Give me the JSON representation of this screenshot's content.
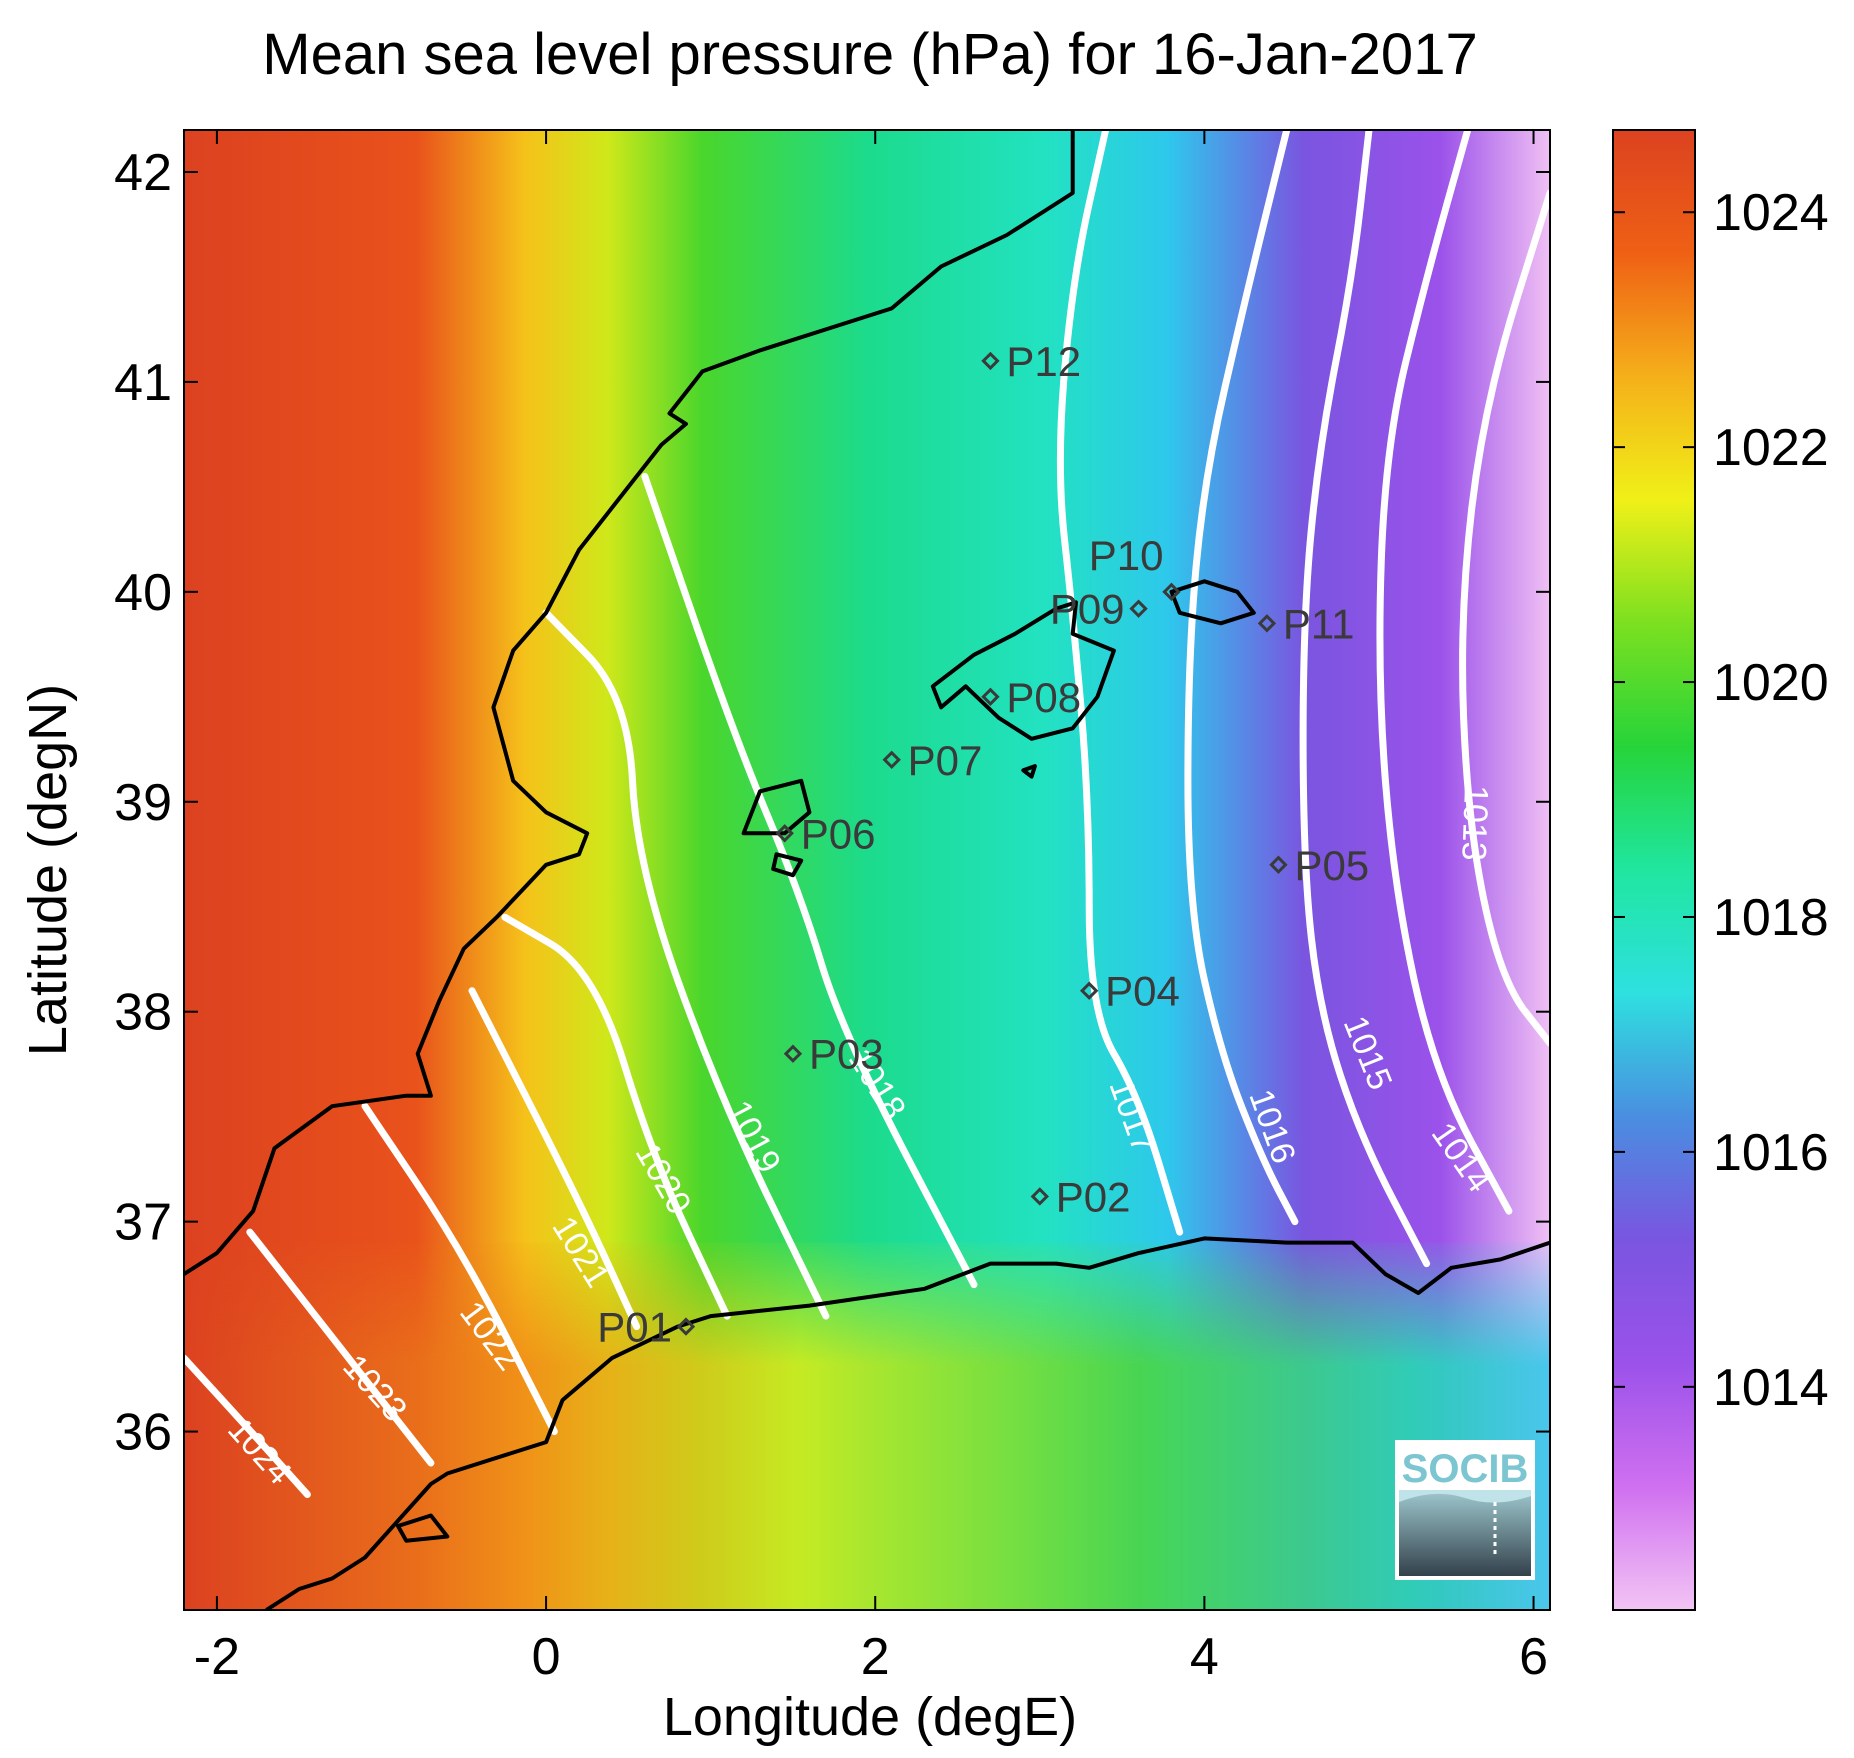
{
  "title": "Mean sea level pressure (hPa) for 16-Jan-2017",
  "xlabel": "Longitude (degE)",
  "ylabel": "Latitude (degN)",
  "xlim": [
    -2.2,
    6.1
  ],
  "ylim": [
    35.15,
    42.2
  ],
  "xticks": [
    -2,
    0,
    2,
    4,
    6
  ],
  "yticks": [
    36,
    37,
    38,
    39,
    40,
    41,
    42
  ],
  "colorbar": {
    "range": [
      1012.1,
      1024.7
    ],
    "ticks": [
      1014,
      1016,
      1018,
      1020,
      1022,
      1024
    ],
    "colors": [
      "#f2c4f4",
      "#d070f0",
      "#9b52ea",
      "#7a55e0",
      "#4a8ee0",
      "#2ee0e0",
      "#20e6a0",
      "#26d43a",
      "#7ce020",
      "#f0f018",
      "#f5b01a",
      "#ef6015",
      "#dc4220"
    ]
  },
  "contours": [
    {
      "level": "1024",
      "label": "1024",
      "points": [
        [
          -2.2,
          36.35
        ],
        [
          -1.85,
          36.05
        ],
        [
          -1.45,
          35.7
        ]
      ],
      "label_at": [
        -1.75,
        35.9
      ],
      "angle": 48
    },
    {
      "level": "1023",
      "label": "1023",
      "points": [
        [
          -1.8,
          36.95
        ],
        [
          -1.3,
          36.45
        ],
        [
          -0.7,
          35.85
        ]
      ],
      "label_at": [
        -1.05,
        36.2
      ],
      "angle": 48
    },
    {
      "level": "1022",
      "label": "1022",
      "points": [
        [
          -1.1,
          37.55
        ],
        [
          -0.5,
          36.85
        ],
        [
          0.05,
          36.0
        ]
      ],
      "label_at": [
        -0.35,
        36.45
      ],
      "angle": 53
    },
    {
      "level": "1021",
      "label": "1021",
      "points": [
        [
          -0.45,
          38.1
        ],
        [
          0.2,
          37.1
        ],
        [
          0.55,
          36.5
        ]
      ],
      "label_at": [
        0.2,
        36.85
      ],
      "angle": 58
    },
    {
      "level": "1020",
      "label": "1020",
      "points": [
        [
          -0.25,
          38.45
        ],
        [
          0.3,
          38.2
        ],
        [
          0.65,
          37.3
        ],
        [
          1.1,
          36.55
        ]
      ],
      "label_at": [
        0.7,
        37.2
      ],
      "angle": 60
    },
    {
      "level": "1019",
      "label": "1019",
      "points": [
        [
          0.0,
          39.9
        ],
        [
          0.5,
          39.5
        ],
        [
          0.55,
          38.7
        ],
        [
          1.05,
          37.6
        ],
        [
          1.7,
          36.55
        ]
      ],
      "label_at": [
        1.25,
        37.4
      ],
      "angle": 62
    },
    {
      "level": "1018",
      "label": "1018",
      "points": [
        [
          0.6,
          40.55
        ],
        [
          1.15,
          39.3
        ],
        [
          1.55,
          38.55
        ],
        [
          1.8,
          37.9
        ],
        [
          2.6,
          36.7
        ]
      ],
      "label_at": [
        2.0,
        37.65
      ],
      "angle": 58
    },
    {
      "level": "1017",
      "label": "1017",
      "points": [
        [
          3.4,
          42.2
        ],
        [
          3.2,
          41.5
        ],
        [
          3.1,
          40.6
        ],
        [
          3.2,
          39.9
        ],
        [
          3.3,
          39.0
        ],
        [
          3.3,
          38.0
        ],
        [
          3.6,
          37.6
        ],
        [
          3.85,
          36.95
        ]
      ],
      "label_at": [
        3.55,
        37.5
      ],
      "angle": 70
    },
    {
      "level": "1016",
      "label": "1016",
      "points": [
        [
          4.5,
          42.2
        ],
        [
          4.25,
          41.4
        ],
        [
          4.0,
          40.55
        ],
        [
          3.9,
          39.7
        ],
        [
          3.9,
          38.5
        ],
        [
          4.1,
          37.8
        ],
        [
          4.35,
          37.3
        ],
        [
          4.55,
          37.0
        ]
      ],
      "label_at": [
        4.4,
        37.45
      ],
      "angle": 70
    },
    {
      "level": "1015",
      "label": "1015",
      "points": [
        [
          5.0,
          42.2
        ],
        [
          4.9,
          41.5
        ],
        [
          4.7,
          40.7
        ],
        [
          4.6,
          39.9
        ],
        [
          4.6,
          38.7
        ],
        [
          4.7,
          38.0
        ],
        [
          4.95,
          37.4
        ],
        [
          5.35,
          36.8
        ]
      ],
      "label_at": [
        4.98,
        37.8
      ],
      "angle": 68
    },
    {
      "level": "1014",
      "label": "1014",
      "points": [
        [
          5.6,
          42.2
        ],
        [
          5.35,
          41.5
        ],
        [
          5.1,
          40.7
        ],
        [
          5.05,
          39.6
        ],
        [
          5.15,
          38.6
        ],
        [
          5.4,
          37.7
        ],
        [
          5.85,
          37.05
        ]
      ],
      "label_at": [
        5.55,
        37.3
      ],
      "angle": 55
    },
    {
      "level": "1013",
      "label": "1013",
      "points": [
        [
          6.1,
          41.9
        ],
        [
          5.7,
          40.9
        ],
        [
          5.55,
          39.9
        ],
        [
          5.6,
          38.9
        ],
        [
          5.8,
          38.15
        ],
        [
          6.1,
          37.85
        ]
      ],
      "label_at": [
        5.63,
        38.9
      ],
      "angle": 92
    }
  ],
  "coastlines": [
    {
      "name": "iberian-coast",
      "points": [
        [
          -2.2,
          36.75
        ],
        [
          -2.0,
          36.85
        ],
        [
          -1.78,
          37.05
        ],
        [
          -1.65,
          37.35
        ],
        [
          -1.3,
          37.55
        ],
        [
          -0.85,
          37.6
        ],
        [
          -0.7,
          37.6
        ],
        [
          -0.78,
          37.8
        ],
        [
          -0.65,
          38.05
        ],
        [
          -0.5,
          38.3
        ],
        [
          -0.3,
          38.45
        ],
        [
          0.0,
          38.7
        ],
        [
          0.2,
          38.75
        ],
        [
          0.25,
          38.85
        ],
        [
          0.0,
          38.95
        ],
        [
          -0.2,
          39.1
        ],
        [
          -0.32,
          39.45
        ],
        [
          -0.2,
          39.72
        ],
        [
          0.0,
          39.9
        ],
        [
          0.2,
          40.2
        ],
        [
          0.4,
          40.4
        ],
        [
          0.7,
          40.7
        ],
        [
          0.85,
          40.8
        ],
        [
          0.75,
          40.85
        ],
        [
          0.85,
          40.95
        ],
        [
          0.95,
          41.05
        ],
        [
          1.3,
          41.15
        ],
        [
          1.7,
          41.25
        ],
        [
          2.1,
          41.35
        ],
        [
          2.4,
          41.55
        ],
        [
          2.8,
          41.7
        ],
        [
          3.2,
          41.9
        ],
        [
          3.2,
          42.2
        ]
      ]
    },
    {
      "name": "north-african-coast",
      "points": [
        [
          -1.7,
          35.15
        ],
        [
          -1.5,
          35.25
        ],
        [
          -1.3,
          35.3
        ],
        [
          -1.1,
          35.4
        ],
        [
          -0.7,
          35.75
        ],
        [
          -0.6,
          35.8
        ],
        [
          -0.4,
          35.85
        ],
        [
          0.0,
          35.95
        ],
        [
          0.1,
          36.15
        ],
        [
          0.4,
          36.35
        ],
        [
          0.8,
          36.5
        ],
        [
          1.0,
          36.55
        ],
        [
          1.6,
          36.6
        ],
        [
          2.3,
          36.68
        ],
        [
          2.7,
          36.8
        ],
        [
          3.1,
          36.8
        ],
        [
          3.3,
          36.78
        ],
        [
          3.6,
          36.85
        ],
        [
          4.0,
          36.92
        ],
        [
          4.5,
          36.9
        ],
        [
          4.9,
          36.9
        ],
        [
          5.1,
          36.75
        ],
        [
          5.3,
          36.66
        ],
        [
          5.5,
          36.78
        ],
        [
          5.8,
          36.82
        ],
        [
          6.1,
          36.9
        ]
      ]
    },
    {
      "name": "island-alboran",
      "closed": true,
      "points": [
        [
          -0.9,
          35.55
        ],
        [
          -0.7,
          35.6
        ],
        [
          -0.6,
          35.5
        ],
        [
          -0.85,
          35.48
        ]
      ]
    },
    {
      "name": "island-mallorca",
      "closed": true,
      "points": [
        [
          2.35,
          39.55
        ],
        [
          2.6,
          39.7
        ],
        [
          2.85,
          39.8
        ],
        [
          3.1,
          39.92
        ],
        [
          3.22,
          39.95
        ],
        [
          3.2,
          39.8
        ],
        [
          3.45,
          39.72
        ],
        [
          3.35,
          39.5
        ],
        [
          3.2,
          39.35
        ],
        [
          2.95,
          39.3
        ],
        [
          2.75,
          39.4
        ],
        [
          2.55,
          39.55
        ],
        [
          2.4,
          39.45
        ]
      ]
    },
    {
      "name": "island-menorca",
      "closed": true,
      "points": [
        [
          3.8,
          40.0
        ],
        [
          4.0,
          40.05
        ],
        [
          4.2,
          40.0
        ],
        [
          4.3,
          39.9
        ],
        [
          4.1,
          39.85
        ],
        [
          3.85,
          39.9
        ]
      ]
    },
    {
      "name": "island-ibiza",
      "closed": true,
      "points": [
        [
          1.2,
          38.85
        ],
        [
          1.3,
          39.05
        ],
        [
          1.55,
          39.1
        ],
        [
          1.6,
          38.95
        ],
        [
          1.45,
          38.85
        ],
        [
          1.35,
          38.85
        ]
      ]
    },
    {
      "name": "island-formentera",
      "closed": true,
      "points": [
        [
          1.4,
          38.75
        ],
        [
          1.55,
          38.72
        ],
        [
          1.5,
          38.65
        ],
        [
          1.38,
          38.68
        ]
      ]
    },
    {
      "name": "island-cabrera",
      "closed": true,
      "points": [
        [
          2.9,
          39.15
        ],
        [
          2.97,
          39.17
        ],
        [
          2.95,
          39.12
        ]
      ]
    }
  ],
  "stations": [
    {
      "id": "P01",
      "lon": 0.85,
      "lat": 36.5,
      "label_side": "left"
    },
    {
      "id": "P02",
      "lon": 3.0,
      "lat": 37.12,
      "label_side": "right"
    },
    {
      "id": "P03",
      "lon": 1.5,
      "lat": 37.8,
      "label_side": "right"
    },
    {
      "id": "P04",
      "lon": 3.3,
      "lat": 38.1,
      "label_side": "right"
    },
    {
      "id": "P05",
      "lon": 4.45,
      "lat": 38.7,
      "label_side": "right"
    },
    {
      "id": "P06",
      "lon": 1.45,
      "lat": 38.85,
      "label_side": "right"
    },
    {
      "id": "P07",
      "lon": 2.1,
      "lat": 39.2,
      "label_side": "right"
    },
    {
      "id": "P08",
      "lon": 2.7,
      "lat": 39.5,
      "label_side": "right"
    },
    {
      "id": "P09",
      "lon": 3.6,
      "lat": 39.92,
      "label_side": "left"
    },
    {
      "id": "P10",
      "lon": 3.8,
      "lat": 40.0,
      "label_side": "above-left"
    },
    {
      "id": "P11",
      "lon": 4.38,
      "lat": 39.85,
      "label_side": "right"
    },
    {
      "id": "P12",
      "lon": 2.7,
      "lat": 41.1,
      "label_side": "right"
    }
  ],
  "logo": {
    "text": "SOCIB"
  }
}
